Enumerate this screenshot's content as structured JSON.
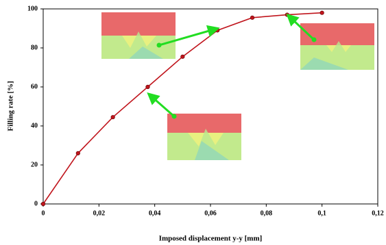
{
  "chart_data": {
    "type": "line",
    "x_label": "Imposed displacement y-y [mm]",
    "y_label": "Filling rate [%]",
    "x": [
      0,
      0.0125,
      0.025,
      0.0375,
      0.05,
      0.0625,
      0.075,
      0.0875,
      0.1
    ],
    "series": [
      {
        "color": "#c0141c",
        "values": [
          0,
          26,
          44.5,
          60,
          75.5,
          89,
          95.5,
          97,
          98
        ]
      }
    ],
    "xlim": [
      0,
      0.12
    ],
    "xticks": [
      0,
      {
        "value": 0.02,
        "label": "0,02"
      },
      {
        "value": 0.04,
        "label": "0,04"
      },
      {
        "value": 0.06,
        "label": "0,06"
      },
      {
        "value": 0.08,
        "label": "0,08"
      },
      {
        "value": 0.1,
        "label": "0,1"
      },
      {
        "value": 0.12,
        "label": "0,12"
      }
    ],
    "ylim": [
      0,
      100
    ],
    "yticks": [
      0,
      20,
      40,
      60,
      80,
      100
    ]
  }
}
